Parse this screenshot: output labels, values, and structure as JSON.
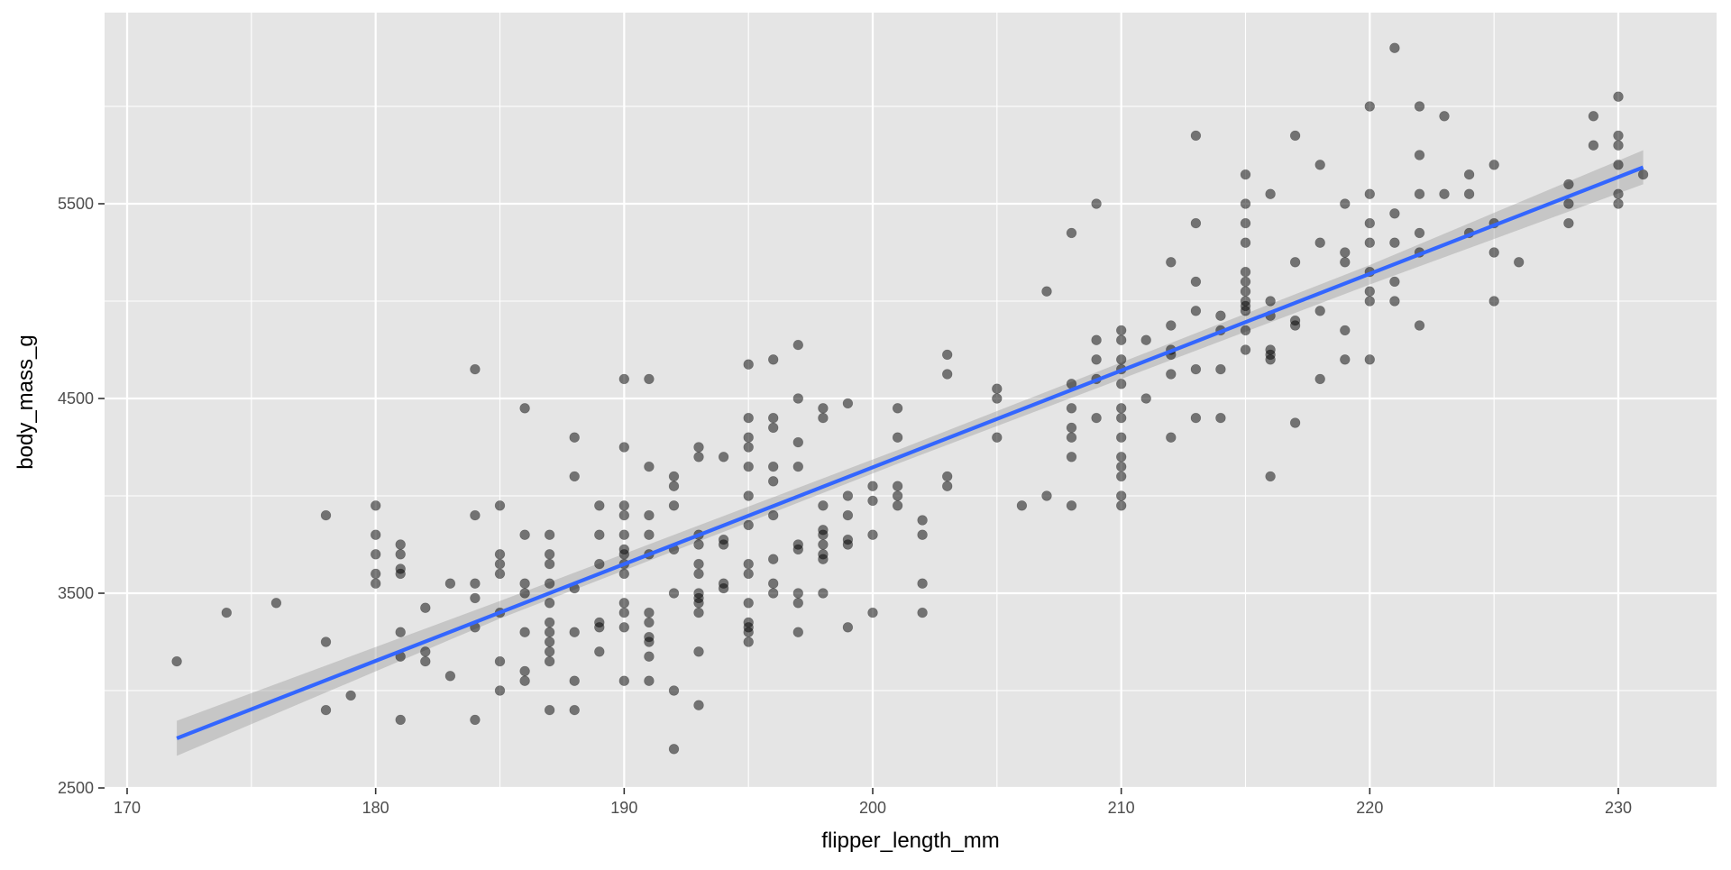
{
  "chart_data": {
    "type": "scatter",
    "title": "",
    "xlabel": "flipper_length_mm",
    "ylabel": "body_mass_g",
    "xlim": [
      169,
      234
    ],
    "ylim": [
      2500,
      6300
    ],
    "x_ticks": [
      170,
      180,
      190,
      200,
      210,
      220,
      230
    ],
    "y_ticks": [
      2500,
      3500,
      4500,
      5500
    ],
    "grid": true,
    "legend": "none",
    "colors": {
      "panel_background": "#e5e5e5",
      "grid_line": "#ffffff",
      "point": "#000000",
      "fit_line": "#3366ff",
      "confidence_band": "#999999"
    },
    "points": [
      [
        172,
        3150
      ],
      [
        174,
        3400
      ],
      [
        176,
        3450
      ],
      [
        178,
        3250
      ],
      [
        178,
        3900
      ],
      [
        178,
        2900
      ],
      [
        179,
        2975
      ],
      [
        180,
        3950
      ],
      [
        180,
        3800
      ],
      [
        180,
        3700
      ],
      [
        180,
        3600
      ],
      [
        180,
        3550
      ],
      [
        181,
        3750
      ],
      [
        181,
        3700
      ],
      [
        181,
        3625
      ],
      [
        181,
        3600
      ],
      [
        181,
        3300
      ],
      [
        181,
        3175
      ],
      [
        181,
        2850
      ],
      [
        182,
        3425
      ],
      [
        182,
        3200
      ],
      [
        182,
        3150
      ],
      [
        183,
        3550
      ],
      [
        183,
        3075
      ],
      [
        184,
        4650
      ],
      [
        184,
        3900
      ],
      [
        184,
        3550
      ],
      [
        184,
        3475
      ],
      [
        184,
        3325
      ],
      [
        184,
        2850
      ],
      [
        185,
        3950
      ],
      [
        185,
        3700
      ],
      [
        185,
        3650
      ],
      [
        185,
        3600
      ],
      [
        185,
        3400
      ],
      [
        185,
        3150
      ],
      [
        185,
        3000
      ],
      [
        186,
        4450
      ],
      [
        186,
        3800
      ],
      [
        186,
        3550
      ],
      [
        186,
        3500
      ],
      [
        186,
        3300
      ],
      [
        186,
        3100
      ],
      [
        186,
        3050
      ],
      [
        187,
        3800
      ],
      [
        187,
        3700
      ],
      [
        187,
        3650
      ],
      [
        187,
        3550
      ],
      [
        187,
        3450
      ],
      [
        187,
        3350
      ],
      [
        187,
        3300
      ],
      [
        187,
        3250
      ],
      [
        187,
        3200
      ],
      [
        187,
        3150
      ],
      [
        187,
        2900
      ],
      [
        188,
        4300
      ],
      [
        188,
        4100
      ],
      [
        188,
        3525
      ],
      [
        188,
        3300
      ],
      [
        188,
        3050
      ],
      [
        188,
        2900
      ],
      [
        189,
        3950
      ],
      [
        189,
        3800
      ],
      [
        189,
        3650
      ],
      [
        189,
        3350
      ],
      [
        189,
        3325
      ],
      [
        189,
        3200
      ],
      [
        190,
        4600
      ],
      [
        190,
        4250
      ],
      [
        190,
        3950
      ],
      [
        190,
        3900
      ],
      [
        190,
        3800
      ],
      [
        190,
        3725
      ],
      [
        190,
        3700
      ],
      [
        190,
        3650
      ],
      [
        190,
        3600
      ],
      [
        190,
        3450
      ],
      [
        190,
        3400
      ],
      [
        190,
        3325
      ],
      [
        190,
        3050
      ],
      [
        191,
        4600
      ],
      [
        191,
        4150
      ],
      [
        191,
        3900
      ],
      [
        191,
        3800
      ],
      [
        191,
        3700
      ],
      [
        191,
        3400
      ],
      [
        191,
        3350
      ],
      [
        191,
        3275
      ],
      [
        191,
        3250
      ],
      [
        191,
        3175
      ],
      [
        191,
        3050
      ],
      [
        192,
        4100
      ],
      [
        192,
        4050
      ],
      [
        192,
        3950
      ],
      [
        192,
        3725
      ],
      [
        192,
        3500
      ],
      [
        192,
        3000
      ],
      [
        192,
        2700
      ],
      [
        193,
        4250
      ],
      [
        193,
        4200
      ],
      [
        193,
        3800
      ],
      [
        193,
        3750
      ],
      [
        193,
        3650
      ],
      [
        193,
        3600
      ],
      [
        193,
        3500
      ],
      [
        193,
        3475
      ],
      [
        193,
        3450
      ],
      [
        193,
        3400
      ],
      [
        193,
        3200
      ],
      [
        193,
        2925
      ],
      [
        194,
        4200
      ],
      [
        194,
        3775
      ],
      [
        194,
        3750
      ],
      [
        194,
        3550
      ],
      [
        194,
        3525
      ],
      [
        195,
        4675
      ],
      [
        195,
        4400
      ],
      [
        195,
        4300
      ],
      [
        195,
        4250
      ],
      [
        195,
        4150
      ],
      [
        195,
        4000
      ],
      [
        195,
        3850
      ],
      [
        195,
        3650
      ],
      [
        195,
        3600
      ],
      [
        195,
        3450
      ],
      [
        195,
        3350
      ],
      [
        195,
        3325
      ],
      [
        195,
        3300
      ],
      [
        195,
        3250
      ],
      [
        196,
        4700
      ],
      [
        196,
        4400
      ],
      [
        196,
        4350
      ],
      [
        196,
        4150
      ],
      [
        196,
        4075
      ],
      [
        196,
        3900
      ],
      [
        196,
        3675
      ],
      [
        196,
        3550
      ],
      [
        196,
        3500
      ],
      [
        197,
        4775
      ],
      [
        197,
        4500
      ],
      [
        197,
        4275
      ],
      [
        197,
        4150
      ],
      [
        197,
        3750
      ],
      [
        197,
        3725
      ],
      [
        197,
        3500
      ],
      [
        197,
        3450
      ],
      [
        197,
        3300
      ],
      [
        198,
        4450
      ],
      [
        198,
        4400
      ],
      [
        198,
        3950
      ],
      [
        198,
        3825
      ],
      [
        198,
        3800
      ],
      [
        198,
        3750
      ],
      [
        198,
        3700
      ],
      [
        198,
        3675
      ],
      [
        198,
        3500
      ],
      [
        199,
        4475
      ],
      [
        199,
        4000
      ],
      [
        199,
        3900
      ],
      [
        199,
        3775
      ],
      [
        199,
        3750
      ],
      [
        199,
        3325
      ],
      [
        200,
        4050
      ],
      [
        200,
        3975
      ],
      [
        200,
        3800
      ],
      [
        200,
        3400
      ],
      [
        201,
        4450
      ],
      [
        201,
        4300
      ],
      [
        201,
        4050
      ],
      [
        201,
        4000
      ],
      [
        201,
        3950
      ],
      [
        202,
        3875
      ],
      [
        202,
        3800
      ],
      [
        202,
        3550
      ],
      [
        202,
        3400
      ],
      [
        203,
        4725
      ],
      [
        203,
        4625
      ],
      [
        203,
        4100
      ],
      [
        203,
        4050
      ],
      [
        205,
        4550
      ],
      [
        205,
        4500
      ],
      [
        205,
        4300
      ],
      [
        206,
        3950
      ],
      [
        207,
        5050
      ],
      [
        207,
        4000
      ],
      [
        208,
        5350
      ],
      [
        208,
        4575
      ],
      [
        208,
        4450
      ],
      [
        208,
        4350
      ],
      [
        208,
        4300
      ],
      [
        208,
        4200
      ],
      [
        208,
        3950
      ],
      [
        209,
        5500
      ],
      [
        209,
        4800
      ],
      [
        209,
        4700
      ],
      [
        209,
        4600
      ],
      [
        209,
        4400
      ],
      [
        210,
        4850
      ],
      [
        210,
        4800
      ],
      [
        210,
        4700
      ],
      [
        210,
        4650
      ],
      [
        210,
        4575
      ],
      [
        210,
        4450
      ],
      [
        210,
        4400
      ],
      [
        210,
        4300
      ],
      [
        210,
        4200
      ],
      [
        210,
        4150
      ],
      [
        210,
        4100
      ],
      [
        210,
        4000
      ],
      [
        210,
        3950
      ],
      [
        211,
        4800
      ],
      [
        211,
        4500
      ],
      [
        212,
        5200
      ],
      [
        212,
        4875
      ],
      [
        212,
        4750
      ],
      [
        212,
        4725
      ],
      [
        212,
        4625
      ],
      [
        212,
        4300
      ],
      [
        213,
        5850
      ],
      [
        213,
        5400
      ],
      [
        213,
        5100
      ],
      [
        213,
        4950
      ],
      [
        213,
        4650
      ],
      [
        213,
        4400
      ],
      [
        214,
        4925
      ],
      [
        214,
        4850
      ],
      [
        214,
        4650
      ],
      [
        214,
        4400
      ],
      [
        215,
        5650
      ],
      [
        215,
        5500
      ],
      [
        215,
        5400
      ],
      [
        215,
        5300
      ],
      [
        215,
        5150
      ],
      [
        215,
        5100
      ],
      [
        215,
        5050
      ],
      [
        215,
        5000
      ],
      [
        215,
        4975
      ],
      [
        215,
        4950
      ],
      [
        215,
        4850
      ],
      [
        215,
        4750
      ],
      [
        216,
        5550
      ],
      [
        216,
        5000
      ],
      [
        216,
        4925
      ],
      [
        216,
        4750
      ],
      [
        216,
        4725
      ],
      [
        216,
        4700
      ],
      [
        216,
        4100
      ],
      [
        217,
        5850
      ],
      [
        217,
        5200
      ],
      [
        217,
        4900
      ],
      [
        217,
        4875
      ],
      [
        217,
        4375
      ],
      [
        218,
        5700
      ],
      [
        218,
        5300
      ],
      [
        218,
        4950
      ],
      [
        218,
        4600
      ],
      [
        219,
        5500
      ],
      [
        219,
        5250
      ],
      [
        219,
        5200
      ],
      [
        219,
        4850
      ],
      [
        219,
        4700
      ],
      [
        220,
        6000
      ],
      [
        220,
        5550
      ],
      [
        220,
        5400
      ],
      [
        220,
        5300
      ],
      [
        220,
        5150
      ],
      [
        220,
        5050
      ],
      [
        220,
        5000
      ],
      [
        220,
        4700
      ],
      [
        221,
        6300
      ],
      [
        221,
        5450
      ],
      [
        221,
        5300
      ],
      [
        221,
        5100
      ],
      [
        221,
        5000
      ],
      [
        222,
        6000
      ],
      [
        222,
        5750
      ],
      [
        222,
        5550
      ],
      [
        222,
        5350
      ],
      [
        222,
        5250
      ],
      [
        222,
        4875
      ],
      [
        223,
        5950
      ],
      [
        223,
        5550
      ],
      [
        224,
        5650
      ],
      [
        224,
        5550
      ],
      [
        224,
        5350
      ],
      [
        225,
        5700
      ],
      [
        225,
        5400
      ],
      [
        225,
        5250
      ],
      [
        225,
        5000
      ],
      [
        226,
        5200
      ],
      [
        228,
        5600
      ],
      [
        228,
        5500
      ],
      [
        228,
        5400
      ],
      [
        229,
        5950
      ],
      [
        229,
        5800
      ],
      [
        230,
        6050
      ],
      [
        230,
        5850
      ],
      [
        230,
        5800
      ],
      [
        230,
        5700
      ],
      [
        230,
        5550
      ],
      [
        230,
        5500
      ],
      [
        231,
        5650
      ]
    ],
    "fit_line": {
      "x": [
        172,
        231
      ],
      "y": [
        2755,
        5687
      ]
    },
    "confidence_band": {
      "x": [
        172,
        185,
        195,
        201,
        210,
        220,
        231
      ],
      "lower": [
        2665,
        3370,
        3865,
        4165,
        4600,
        5085,
        5600
      ],
      "upper": [
        2845,
        3460,
        3945,
        4235,
        4685,
        5185,
        5775
      ]
    }
  }
}
